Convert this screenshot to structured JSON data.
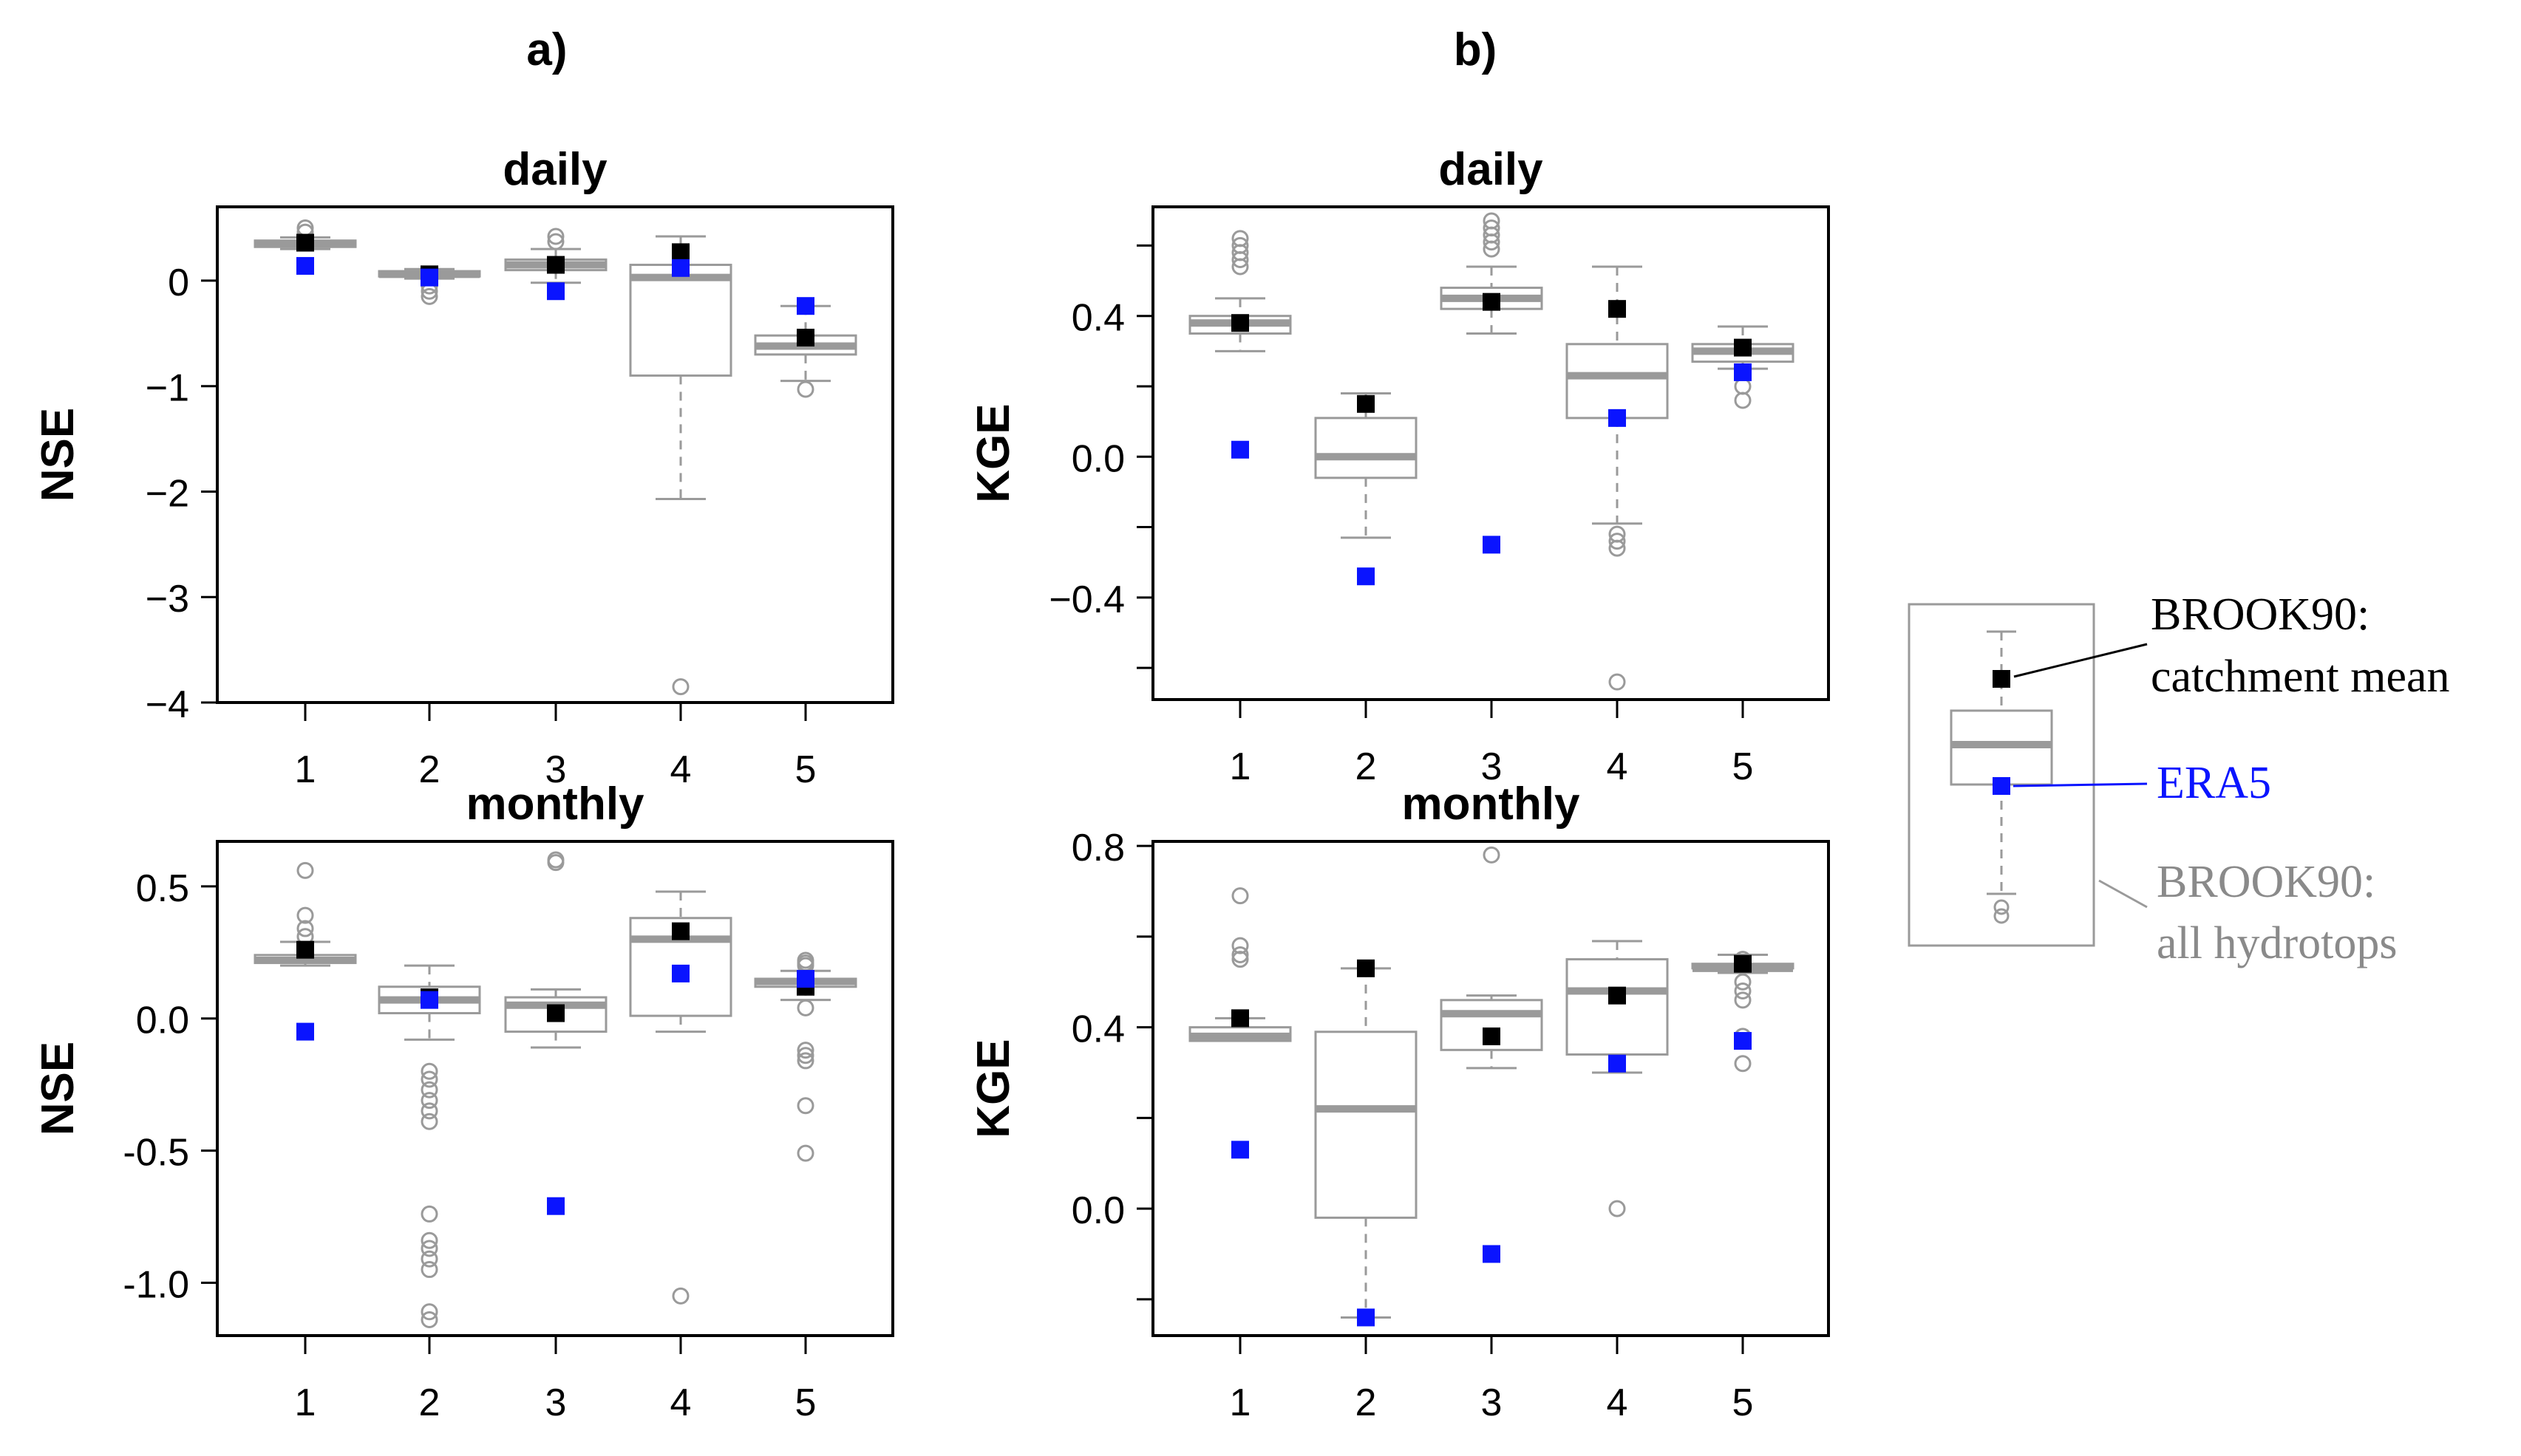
{
  "panel_labels": {
    "a": "a)",
    "b": "b)"
  },
  "legend": {
    "black_label_1": "BROOK90:",
    "black_label_2": "catchment mean",
    "blue_label": "ERA5",
    "gray_label_1": "BROOK90:",
    "gray_label_2": "all hydrotops",
    "colors": {
      "black": "#000000",
      "blue": "#0a14ff",
      "gray": "#9a9a9a"
    }
  },
  "chart_data": [
    {
      "id": "nse-daily",
      "type": "boxplot",
      "title": "daily",
      "ylabel": "NSE",
      "categories": [
        "1",
        "2",
        "3",
        "4",
        "5"
      ],
      "ylim": [
        -4.0,
        0.7
      ],
      "yticks": [
        0,
        -1,
        -2,
        -3,
        -4
      ],
      "ytick_labels": [
        "0",
        "−1",
        "−2",
        "−3",
        "−4"
      ],
      "boxes": [
        {
          "low": 0.3,
          "q1": 0.32,
          "median": 0.35,
          "q3": 0.38,
          "high": 0.41,
          "outliers": [
            0.5,
            0.46
          ]
        },
        {
          "low": 0.02,
          "q1": 0.04,
          "median": 0.06,
          "q3": 0.09,
          "high": 0.11,
          "outliers": [
            -0.05,
            -0.1,
            -0.15
          ]
        },
        {
          "low": -0.02,
          "q1": 0.1,
          "median": 0.15,
          "q3": 0.2,
          "high": 0.3,
          "outliers": [
            0.42,
            0.37
          ]
        },
        {
          "low": -2.07,
          "q1": -0.9,
          "median": 0.03,
          "q3": 0.15,
          "high": 0.42,
          "outliers": [
            -3.85
          ]
        },
        {
          "low": -0.95,
          "q1": -0.7,
          "median": -0.62,
          "q3": -0.52,
          "high": -0.24,
          "outliers": [
            -1.03
          ]
        }
      ],
      "catchment_mean": [
        0.36,
        0.06,
        0.15,
        0.27,
        -0.54
      ],
      "era5": [
        0.14,
        0.03,
        -0.1,
        0.12,
        -0.24
      ]
    },
    {
      "id": "kge-daily",
      "type": "boxplot",
      "title": "daily",
      "ylabel": "KGE",
      "categories": [
        "1",
        "2",
        "3",
        "4",
        "5"
      ],
      "ylim": [
        -0.69,
        0.71
      ],
      "yticks": [
        0.6,
        0.4,
        0.2,
        0.0,
        -0.2,
        -0.4,
        -0.6
      ],
      "ytick_labels": [
        "",
        "0.4",
        "",
        "0.0",
        "",
        "−0.4",
        ""
      ],
      "boxes": [
        {
          "low": 0.3,
          "q1": 0.35,
          "median": 0.38,
          "q3": 0.4,
          "high": 0.45,
          "outliers": [
            0.62,
            0.6,
            0.58,
            0.56,
            0.54
          ]
        },
        {
          "low": -0.23,
          "q1": -0.06,
          "median": 0.0,
          "q3": 0.11,
          "high": 0.18,
          "outliers": []
        },
        {
          "low": 0.35,
          "q1": 0.42,
          "median": 0.45,
          "q3": 0.48,
          "high": 0.54,
          "outliers": [
            0.67,
            0.65,
            0.63,
            0.61,
            0.59
          ]
        },
        {
          "low": -0.19,
          "q1": 0.11,
          "median": 0.23,
          "q3": 0.32,
          "high": 0.54,
          "outliers": [
            -0.22,
            -0.24,
            -0.26,
            -0.64
          ]
        },
        {
          "low": 0.25,
          "q1": 0.27,
          "median": 0.3,
          "q3": 0.32,
          "high": 0.37,
          "outliers": [
            0.2,
            0.16
          ]
        }
      ],
      "catchment_mean": [
        0.38,
        0.15,
        0.44,
        0.42,
        0.31
      ],
      "era5": [
        0.02,
        -0.34,
        -0.25,
        0.11,
        0.24
      ]
    },
    {
      "id": "nse-monthly",
      "type": "boxplot",
      "title": "monthly",
      "ylabel": "NSE",
      "categories": [
        "1",
        "2",
        "3",
        "4",
        "5"
      ],
      "ylim": [
        -1.2,
        0.67
      ],
      "yticks": [
        0.5,
        0.0,
        -0.5,
        -1.0
      ],
      "ytick_labels": [
        "0.5",
        "0.0",
        "-0.5",
        "-1.0"
      ],
      "boxes": [
        {
          "low": 0.2,
          "q1": 0.21,
          "median": 0.22,
          "q3": 0.24,
          "high": 0.29,
          "outliers": [
            0.56,
            0.39,
            0.34,
            0.31
          ]
        },
        {
          "low": -0.08,
          "q1": 0.02,
          "median": 0.07,
          "q3": 0.12,
          "high": 0.2,
          "outliers": [
            -0.2,
            -0.23,
            -0.27,
            -0.31,
            -0.35,
            -0.39,
            -0.74,
            -0.84,
            -0.87,
            -0.91,
            -0.95,
            -1.11,
            -1.14
          ]
        },
        {
          "low": -0.11,
          "q1": -0.05,
          "median": 0.05,
          "q3": 0.08,
          "high": 0.11,
          "outliers": [
            0.6,
            0.59
          ]
        },
        {
          "low": -0.05,
          "q1": 0.01,
          "median": 0.3,
          "q3": 0.38,
          "high": 0.48,
          "outliers": [
            -1.05
          ]
        },
        {
          "low": 0.07,
          "q1": 0.12,
          "median": 0.14,
          "q3": 0.15,
          "high": 0.18,
          "outliers": [
            0.22,
            0.21,
            0.2,
            0.04,
            -0.12,
            -0.14,
            -0.16,
            -0.33,
            -0.51
          ]
        }
      ],
      "catchment_mean": [
        0.26,
        0.08,
        0.02,
        0.33,
        0.12
      ],
      "era5": [
        -0.05,
        0.07,
        -0.71,
        0.17,
        0.15
      ]
    },
    {
      "id": "kge-monthly",
      "type": "boxplot",
      "title": "monthly",
      "ylabel": "KGE",
      "categories": [
        "1",
        "2",
        "3",
        "4",
        "5"
      ],
      "ylim": [
        -0.28,
        0.81
      ],
      "yticks": [
        0.8,
        0.6,
        0.4,
        0.2,
        0.0,
        -0.2
      ],
      "ytick_labels": [
        "0.8",
        "",
        "0.4",
        "",
        "0.0",
        ""
      ],
      "boxes": [
        {
          "low": 0.37,
          "q1": 0.37,
          "median": 0.38,
          "q3": 0.4,
          "high": 0.42,
          "outliers": [
            0.69,
            0.58,
            0.56,
            0.55
          ]
        },
        {
          "low": -0.24,
          "q1": -0.02,
          "median": 0.22,
          "q3": 0.39,
          "high": 0.53,
          "outliers": []
        },
        {
          "low": 0.31,
          "q1": 0.35,
          "median": 0.43,
          "q3": 0.46,
          "high": 0.47,
          "outliers": [
            0.78
          ]
        },
        {
          "low": 0.3,
          "q1": 0.34,
          "median": 0.48,
          "q3": 0.55,
          "high": 0.59,
          "outliers": [
            0.0
          ]
        },
        {
          "low": 0.52,
          "q1": 0.53,
          "median": 0.53,
          "q3": 0.54,
          "high": 0.56,
          "outliers": [
            0.55,
            0.5,
            0.48,
            0.46,
            0.38,
            0.32
          ]
        }
      ],
      "catchment_mean": [
        0.42,
        0.53,
        0.38,
        0.47,
        0.54
      ],
      "era5": [
        0.13,
        -0.24,
        -0.1,
        0.32,
        0.37
      ]
    }
  ]
}
